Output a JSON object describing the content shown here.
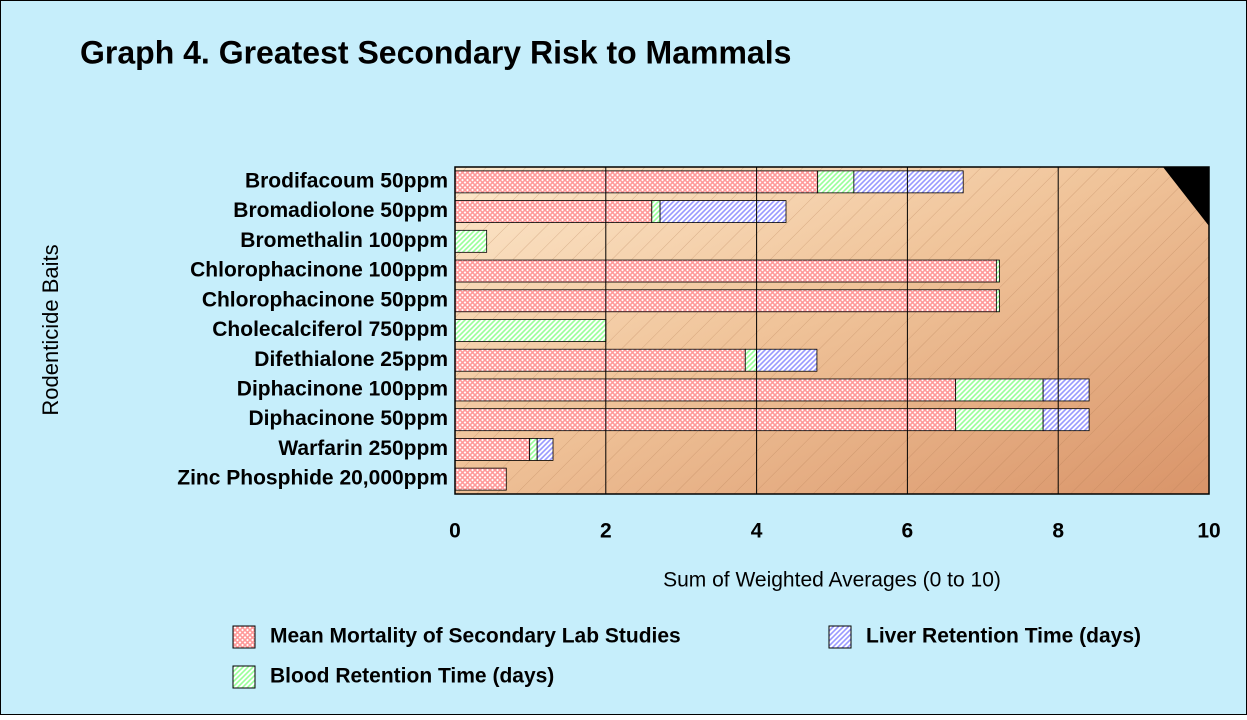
{
  "chart_data": {
    "type": "stacked-bar-horizontal",
    "title": "Graph 4. Greatest Secondary Risk to Mammals",
    "ylabel": "Rodenticide Baits",
    "xlabel": "Sum of Weighted Averages (0 to 10)",
    "categories": [
      "Brodifacoum 50ppm",
      "Bromadiolone 50ppm",
      "Bromethalin 100ppm",
      "Chlorophacinone 100ppm",
      "Chlorophacinone 50ppm",
      "Cholecalciferol 750ppm",
      "Difethialone 25ppm",
      "Diphacinone 100ppm",
      "Diphacinone 50ppm",
      "Warfarin 250ppm",
      "Zinc Phosphide 20,000ppm"
    ],
    "series": [
      {
        "name": "Mean Mortality of Secondary Lab Studies",
        "color": "#ff9999",
        "values": [
          4.81,
          2.61,
          0,
          7.18,
          7.18,
          0,
          3.85,
          6.64,
          6.64,
          0.99,
          0.68
        ]
      },
      {
        "name": "Blood Retention Time (days)",
        "color": "#99ff99",
        "values": [
          0.48,
          0.11,
          0.42,
          0.04,
          0.04,
          2.0,
          0.15,
          1.16,
          1.16,
          0.1,
          0
        ]
      },
      {
        "name": "Liver Retention Time (days)",
        "color": "#9999ff",
        "values": [
          1.45,
          1.67,
          0,
          0,
          0,
          0,
          0.8,
          0.61,
          0.61,
          0.21,
          0
        ]
      }
    ],
    "xlim": [
      0,
      10
    ],
    "xticks": [
      0,
      2,
      4,
      6,
      8,
      10
    ],
    "grid": true
  }
}
